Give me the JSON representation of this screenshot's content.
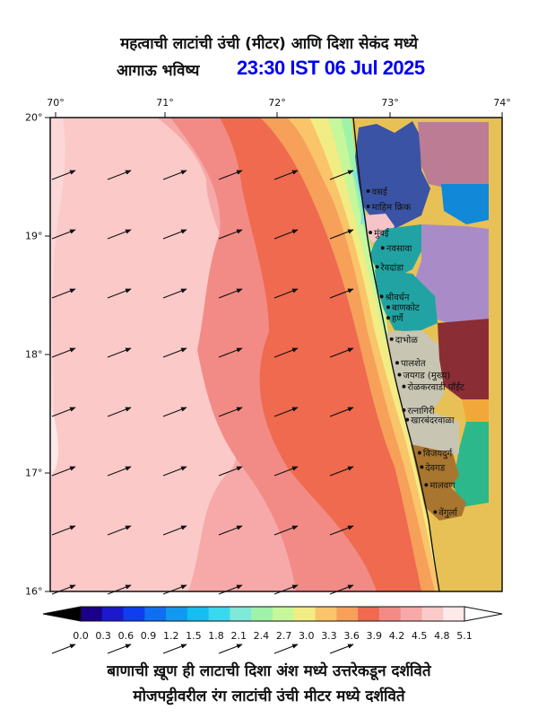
{
  "header": {
    "title_line1": "महत्वाची लाटांची उंची (मीटर) आणि दिशा सेकंद मध्ये",
    "title_line2_prefix": "आगाऊ भविष्य",
    "forecast_time": "23:30 IST 06 Jul 2025"
  },
  "axes": {
    "lon_ticks": [
      "70°",
      "71°",
      "72°",
      "73°",
      "74°"
    ],
    "lat_ticks": [
      "20°",
      "19°",
      "18°",
      "17°",
      "16°"
    ]
  },
  "ports": [
    {
      "name": "वसई",
      "lat": 19.38,
      "lon": 72.8
    },
    {
      "name": "माहिम क्रिक",
      "lat": 19.25,
      "lon": 72.8
    },
    {
      "name": "मुंबई",
      "lat": 19.03,
      "lon": 72.82
    },
    {
      "name": "नवसावा",
      "lat": 18.9,
      "lon": 72.93
    },
    {
      "name": "रेवदांडा",
      "lat": 18.74,
      "lon": 72.88
    },
    {
      "name": "श्रीवर्धन",
      "lat": 18.49,
      "lon": 72.92
    },
    {
      "name": "बाणकोट",
      "lat": 18.4,
      "lon": 72.98
    },
    {
      "name": "हर्णे",
      "lat": 18.31,
      "lon": 72.98
    },
    {
      "name": "दाभोळ",
      "lat": 18.13,
      "lon": 73.01
    },
    {
      "name": "पालशेत",
      "lat": 17.93,
      "lon": 73.06
    },
    {
      "name": "जयगड (मुख्य)",
      "lat": 17.83,
      "lon": 73.08
    },
    {
      "name": "रोळकरवाडी पॉईंट",
      "lat": 17.73,
      "lon": 73.12
    },
    {
      "name": "रत्नागिरी",
      "lat": 17.53,
      "lon": 73.12
    },
    {
      "name": "खारबंदरवाळा",
      "lat": 17.45,
      "lon": 73.15
    },
    {
      "name": "विजयदुर्ग",
      "lat": 17.17,
      "lon": 73.26
    },
    {
      "name": "देवगड",
      "lat": 17.05,
      "lon": 73.28
    },
    {
      "name": "मालवण",
      "lat": 16.9,
      "lon": 73.32
    },
    {
      "name": "वेंगुर्ला",
      "lat": 16.67,
      "lon": 73.4
    }
  ],
  "colorbar": {
    "labels": [
      "0.0",
      "0.3",
      "0.6",
      "0.9",
      "1.2",
      "1.5",
      "1.8",
      "2.1",
      "2.4",
      "2.7",
      "3.0",
      "3.3",
      "3.6",
      "3.9",
      "4.2",
      "4.5",
      "4.8",
      "5.1"
    ],
    "colors": [
      "#1a0088",
      "#1a1acc",
      "#0e3ef0",
      "#0f6ff0",
      "#1199f0",
      "#14bef0",
      "#3ad8ee",
      "#7fe8d8",
      "#9ef3a8",
      "#c6f79b",
      "#f2ec84",
      "#f9c46a",
      "#f6a05a",
      "#ef6a4f",
      "#f28b86",
      "#f6a9a8",
      "#fac9c8",
      "#fde9e8"
    ]
  },
  "footer": {
    "line1": "बाणाची ख़ूण ही लाटाची दिशा अंश मध्ये उत्तरेकडून दर्शविते",
    "line2": "मोजपट्टीवरील रंग लाटांची उंची मीटर मध्ये दर्शविते"
  }
}
